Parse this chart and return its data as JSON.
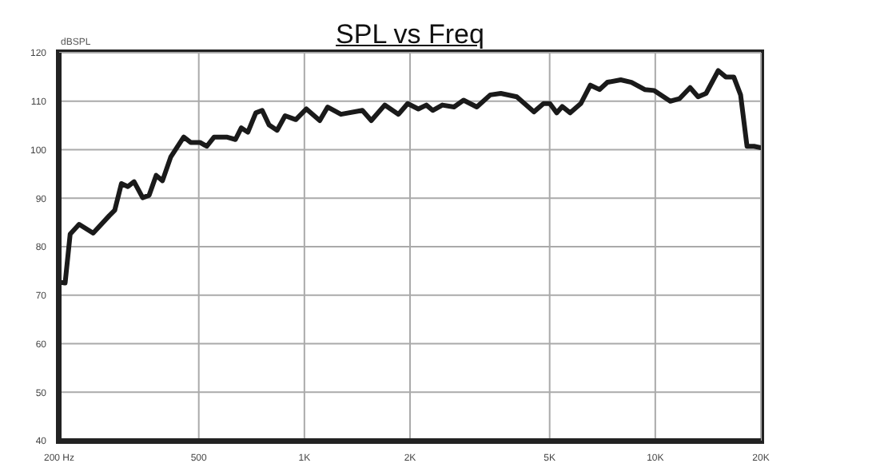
{
  "chart_data": {
    "type": "line",
    "title": "SPL vs Freq",
    "ylabel": "dBSPL",
    "log": "x",
    "grid": true,
    "marker": "none",
    "line_style": "solid",
    "xlim": [
      200,
      20000
    ],
    "xticks": [
      {
        "value": 200,
        "label": "200 Hz"
      },
      500,
      {
        "value": 1000,
        "label": "1K"
      },
      {
        "value": 2000,
        "label": "2K"
      },
      {
        "value": 5000,
        "label": "5K"
      },
      {
        "value": 10000,
        "label": "10K"
      },
      {
        "value": 20000,
        "label": "20K"
      }
    ],
    "ylim": [
      40,
      120
    ],
    "yticks": [
      40,
      50,
      60,
      70,
      80,
      90,
      100,
      110,
      120
    ],
    "series": [
      {
        "color": "#1a1a1a",
        "x": [
          200,
          208,
          215,
          228,
          250,
          278,
          288,
          301,
          314,
          327,
          346,
          361,
          378,
          394,
          416,
          453,
          474,
          504,
          527,
          553,
          600,
          636,
          661,
          690,
          727,
          758,
          793,
          836,
          881,
          945,
          1013,
          1106,
          1165,
          1271,
          1463,
          1551,
          1694,
          1854,
          1969,
          2112,
          2226,
          2321,
          2472,
          2669,
          2842,
          3100,
          3386,
          3629,
          4030,
          4508,
          4802,
          5007,
          5239,
          5429,
          5721,
          6131,
          6531,
          6933,
          7306,
          7971,
          8551,
          9328,
          9933,
          11033,
          11714,
          12567,
          13243,
          13953,
          15114,
          15881,
          16736,
          17504,
          18257,
          19117,
          20000
        ],
        "values": [
          72.7,
          72.5,
          82.6,
          84.6,
          82.8,
          86.4,
          87.5,
          93.0,
          92.4,
          93.4,
          90.1,
          90.6,
          94.7,
          93.6,
          98.5,
          102.6,
          101.5,
          101.5,
          100.7,
          102.6,
          102.6,
          102.1,
          104.5,
          103.6,
          107.6,
          108.1,
          105.1,
          104.0,
          107.0,
          106.2,
          108.4,
          106.0,
          108.8,
          107.3,
          108.1,
          106.0,
          109.2,
          107.3,
          109.5,
          108.4,
          109.2,
          108.1,
          109.2,
          108.8,
          110.2,
          108.8,
          111.3,
          111.6,
          110.9,
          107.8,
          109.5,
          109.5,
          107.6,
          108.9,
          107.6,
          109.5,
          113.3,
          112.4,
          113.9,
          114.4,
          113.9,
          112.4,
          112.2,
          110.0,
          110.5,
          112.8,
          110.9,
          111.6,
          116.3,
          115.0,
          115.0,
          111.3,
          100.7,
          100.7,
          100.4
        ]
      }
    ]
  }
}
